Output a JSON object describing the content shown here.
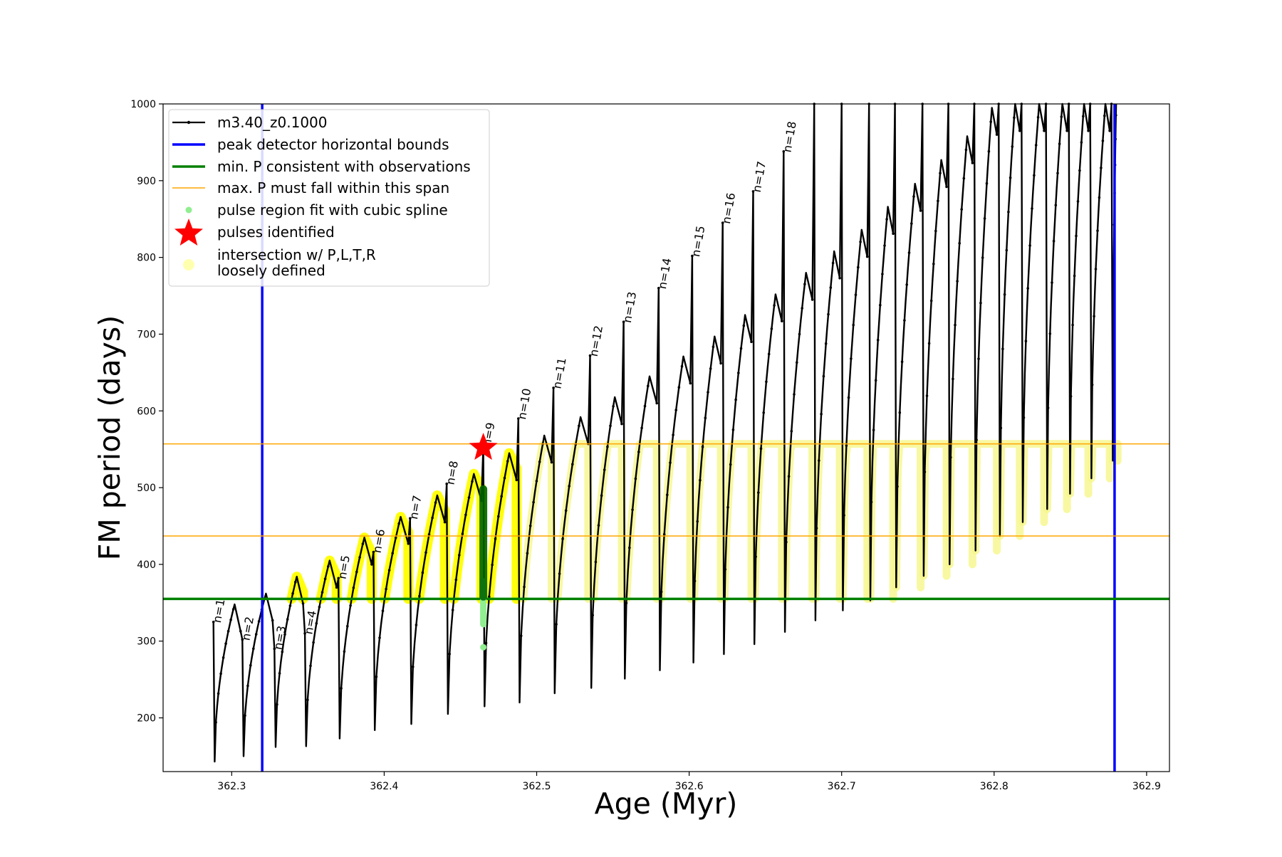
{
  "chart_data": {
    "type": "line",
    "title": "",
    "xlabel": "Age (Myr)",
    "ylabel": "FM period (days)",
    "xlim": [
      362.255,
      362.915
    ],
    "ylim": [
      130,
      1000
    ],
    "x_ticks": [
      362.3,
      362.4,
      362.5,
      362.6,
      362.7,
      362.8,
      362.9
    ],
    "y_ticks": [
      200,
      300,
      400,
      500,
      600,
      700,
      800,
      900,
      1000
    ],
    "grid": false,
    "legend_position": "upper-left",
    "legend": [
      {
        "label": "m3.40_z0.1000",
        "marker": "line-dot",
        "color": "#000000"
      },
      {
        "label": "peak detector horizontal bounds",
        "marker": "line",
        "color": "#0000ff"
      },
      {
        "label": "min. P consistent with observations",
        "marker": "line",
        "color": "#008000"
      },
      {
        "label": "max. P must fall within this span",
        "marker": "thin-line",
        "color": "#ffa500"
      },
      {
        "label": "pulse region fit with cubic spline",
        "marker": "dot",
        "color": "#90ee90"
      },
      {
        "label": "pulses identified",
        "marker": "star",
        "color": "#ff0000"
      },
      {
        "label": "intersection w/ P,L,T,R",
        "label2": "loosely defined",
        "marker": "big-dot",
        "color": "#ffffb0"
      }
    ],
    "reference_lines": {
      "vertical_blue": [
        362.32,
        362.879
      ],
      "horizontal_green": 355,
      "horizontal_orange": [
        437,
        557
      ]
    },
    "series": [
      {
        "name": "m3.40_z0.1000",
        "color": "#000000",
        "pulses": [
          {
            "n": "n=1",
            "x": 362.288,
            "y": 325,
            "min": 143,
            "peak": 348
          },
          {
            "n": "n=2",
            "x": 362.307,
            "y": 302,
            "min": 150,
            "peak": 362
          },
          {
            "n": "n=3",
            "x": 362.328,
            "y": 290,
            "min": 162,
            "peak": 384
          },
          {
            "n": "n=4",
            "x": 362.348,
            "y": 310,
            "min": 163,
            "peak": 405
          },
          {
            "n": "n=5",
            "x": 362.37,
            "y": 382,
            "min": 173,
            "peak": 435
          },
          {
            "n": "n=6",
            "x": 362.393,
            "y": 416,
            "min": 184,
            "peak": 462
          },
          {
            "n": "n=7",
            "x": 362.417,
            "y": 460,
            "min": 192,
            "peak": 490
          },
          {
            "n": "n=8",
            "x": 362.441,
            "y": 505,
            "min": 205,
            "peak": 518
          },
          {
            "n": "n=9",
            "x": 362.465,
            "y": 555,
            "min": 215,
            "peak": 545
          },
          {
            "n": "n=10",
            "x": 362.488,
            "y": 590,
            "min": 220,
            "peak": 568
          },
          {
            "n": "n=11",
            "x": 362.511,
            "y": 630,
            "min": 232,
            "peak": 592
          },
          {
            "n": "n=12",
            "x": 362.535,
            "y": 672,
            "min": 239,
            "peak": 618
          },
          {
            "n": "n=13",
            "x": 362.557,
            "y": 716,
            "min": 251,
            "peak": 645
          },
          {
            "n": "n=14",
            "x": 362.58,
            "y": 760,
            "min": 262,
            "peak": 671
          },
          {
            "n": "n=15",
            "x": 362.602,
            "y": 802,
            "min": 272,
            "peak": 697
          },
          {
            "n": "n=16",
            "x": 362.622,
            "y": 845,
            "min": 283,
            "peak": 725
          },
          {
            "n": "n=17",
            "x": 362.642,
            "y": 886,
            "min": 296,
            "peak": 752
          },
          {
            "n": "n=18",
            "x": 362.662,
            "y": 938,
            "min": 312,
            "peak": 780
          },
          {
            "n": "",
            "x": 362.682,
            "y": 1000,
            "min": 327,
            "peak": 808
          },
          {
            "n": "",
            "x": 362.7,
            "y": 1000,
            "min": 340,
            "peak": 836
          },
          {
            "n": "",
            "x": 362.718,
            "y": 1000,
            "min": 353,
            "peak": 866
          },
          {
            "n": "",
            "x": 362.735,
            "y": 1000,
            "min": 370,
            "peak": 896
          },
          {
            "n": "",
            "x": 362.753,
            "y": 1000,
            "min": 385,
            "peak": 927
          },
          {
            "n": "",
            "x": 362.77,
            "y": 1000,
            "min": 400,
            "peak": 958
          },
          {
            "n": "",
            "x": 362.787,
            "y": 1000,
            "min": 418,
            "peak": 995
          },
          {
            "n": "",
            "x": 362.803,
            "y": 1000,
            "min": 437,
            "peak": 1000
          },
          {
            "n": "",
            "x": 362.818,
            "y": 1000,
            "min": 455,
            "peak": 1000
          },
          {
            "n": "",
            "x": 362.834,
            "y": 1000,
            "min": 472,
            "peak": 1000
          },
          {
            "n": "",
            "x": 362.849,
            "y": 1000,
            "min": 492,
            "peak": 1000
          },
          {
            "n": "",
            "x": 362.863,
            "y": 1000,
            "min": 512,
            "peak": 1000
          },
          {
            "n": "",
            "x": 362.877,
            "y": 1000,
            "min": 535,
            "peak": 1000
          }
        ]
      }
    ],
    "identified_pulse": {
      "x": 362.465,
      "y": 552
    },
    "spline_fit_region": {
      "x": 362.465,
      "y_low": 292,
      "y_high": 498
    }
  }
}
